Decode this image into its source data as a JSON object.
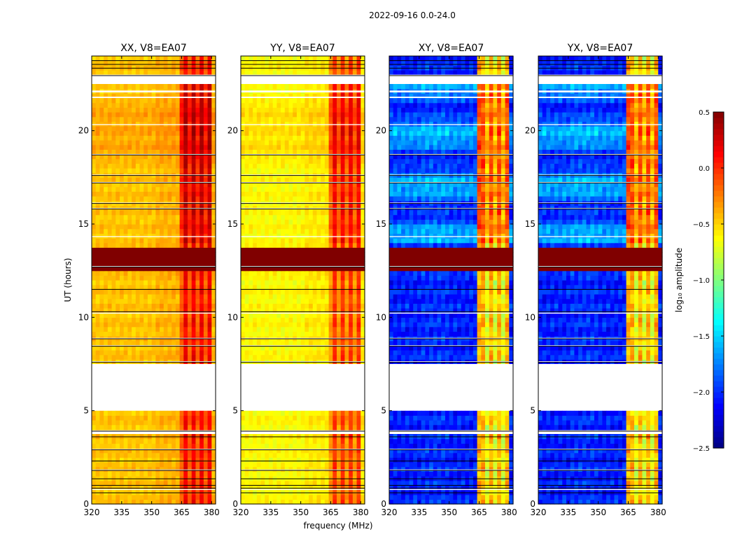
{
  "figure_title": "2022-09-16 0.0-24.0",
  "chart_data": {
    "type": "heatmap",
    "suptitle": "2022-09-16 0.0-24.0",
    "xlabel": "frequency (MHz)",
    "ylabel": "UT (hours)",
    "xlim": [
      320,
      382
    ],
    "ylim": [
      0,
      24
    ],
    "xticks": [
      "320",
      "335",
      "350",
      "365",
      "380"
    ],
    "xtick_values": [
      320,
      335,
      350,
      365,
      380
    ],
    "yticks": [
      "0",
      "5",
      "10",
      "15",
      "20"
    ],
    "ytick_values": [
      0,
      5,
      10,
      15,
      20
    ],
    "panels": [
      {
        "title": "XX, V8=EA07",
        "product": "XX"
      },
      {
        "title": "YY, V8=EA07",
        "product": "YY"
      },
      {
        "title": "XY, V8=EA07",
        "product": "XY"
      },
      {
        "title": "YX, V8=EA07",
        "product": "YX"
      }
    ],
    "colorbar": {
      "label": "log₁₀ amplitude",
      "colormap": "jet",
      "vmin": -2.5,
      "vmax": 0.5,
      "ticks": [
        "0.5",
        "0.0",
        "−0.5",
        "−1.0",
        "−1.5",
        "−2.0",
        "−2.5"
      ],
      "tick_values": [
        0.5,
        0.0,
        -0.5,
        -1.0,
        -1.5,
        -2.0,
        -2.5
      ]
    },
    "rfi_band_mhz": [
      363.5,
      380.5
    ],
    "missing_data_ut_hours": [
      [
        5.0,
        7.5
      ],
      [
        22.5,
        23.0
      ]
    ],
    "saturated_ut_hours": [
      [
        12.6,
        13.7
      ]
    ]
  }
}
